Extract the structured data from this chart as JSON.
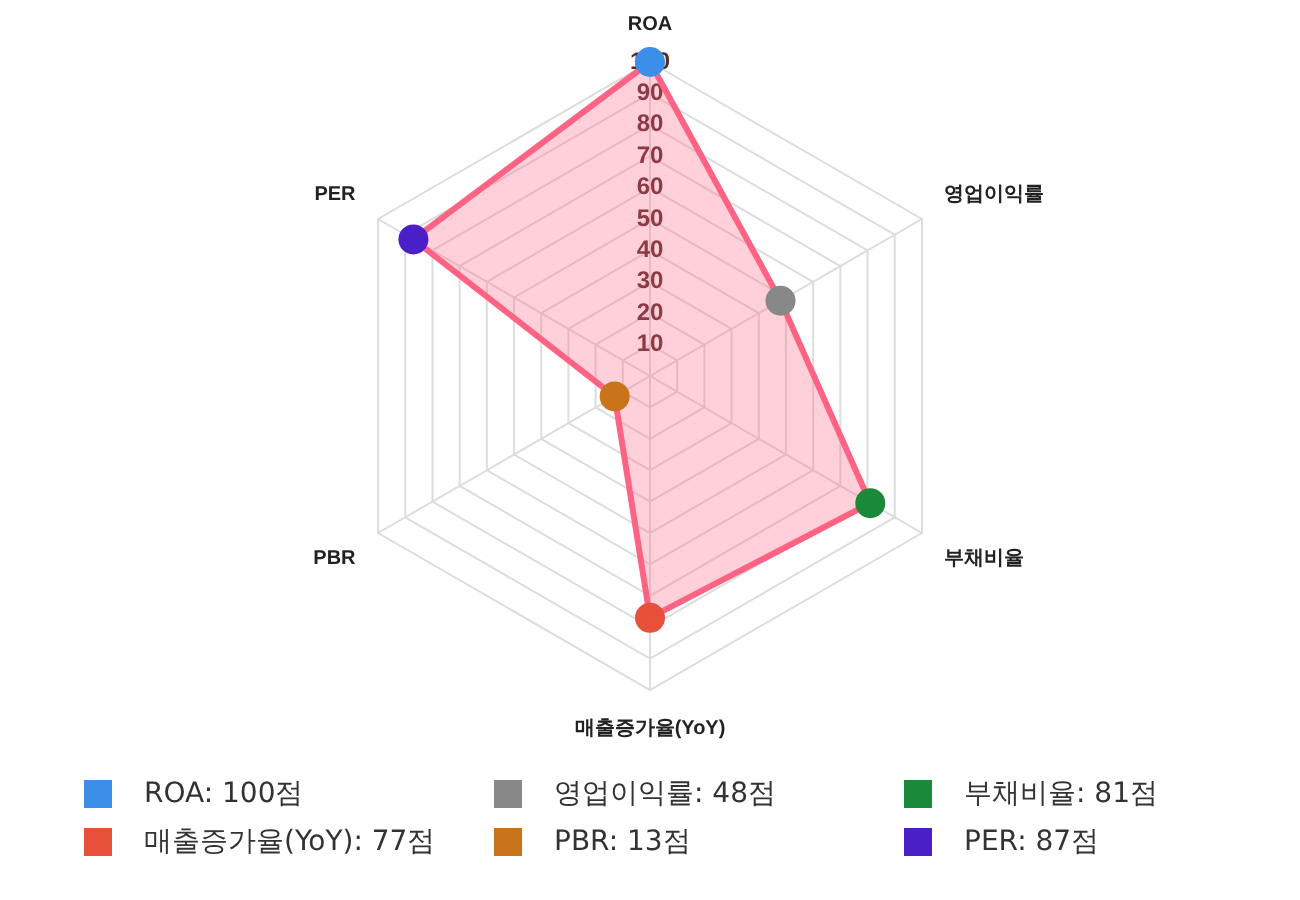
{
  "chart_data": {
    "type": "radar",
    "categories": [
      "ROA",
      "영업이익률",
      "부채비율",
      "매출증가율(YoY)",
      "PBR",
      "PER"
    ],
    "series": [
      {
        "color": "#ff6384",
        "values": [
          100,
          48,
          81,
          77,
          13,
          87
        ]
      }
    ],
    "colors": [
      "#3b8fe8",
      "#888888",
      "#1a8a3a",
      "#e8503a",
      "#c8741a",
      "#4a1fc8"
    ],
    "value_labels": [
      "ROA: 100점",
      "영업이익률: 48점",
      "부채비율: 81점",
      "매출증가율(YoY): 77점",
      "PBR: 13점",
      "PER: 87점"
    ],
    "ylim": [
      0,
      100
    ],
    "yticks": [
      10,
      20,
      30,
      40,
      50,
      60,
      70,
      80,
      90,
      100
    ],
    "grid": true,
    "marker": "circle"
  }
}
